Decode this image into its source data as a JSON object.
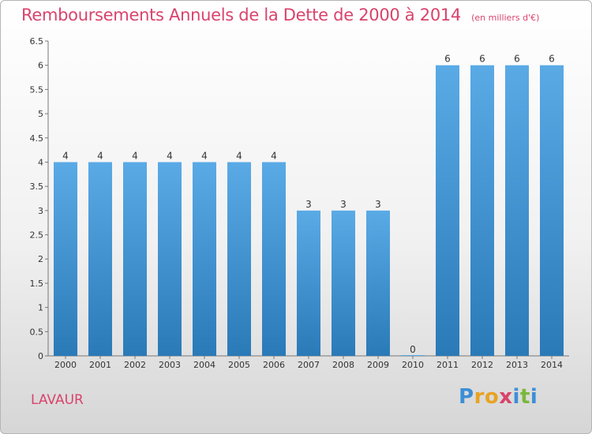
{
  "title": "Remboursements Annuels de la Dette de 2000 à 2014",
  "unit_note": "(en milliers d'€)",
  "place": "LAVAUR",
  "logo": {
    "text": "Proxiti",
    "letters": [
      {
        "ch": "P",
        "color": "#3d8ed6"
      },
      {
        "ch": "r",
        "color": "#e8a323"
      },
      {
        "ch": "o",
        "color": "#e8a323"
      },
      {
        "ch": "x",
        "color": "#d9436c"
      },
      {
        "ch": "i",
        "color": "#3d8ed6"
      },
      {
        "ch": "t",
        "color": "#7ab83d"
      },
      {
        "ch": "i",
        "color": "#3d8ed6"
      }
    ]
  },
  "colors": {
    "accent": "#d9436c",
    "bar_top": "#5aaae6",
    "bar_bottom": "#2a7ab8"
  },
  "chart_data": {
    "type": "bar",
    "title": "Remboursements Annuels de la Dette de 2000 à 2014",
    "subtitle": "(en milliers d'€)",
    "xlabel": "",
    "ylabel": "",
    "categories": [
      "2000",
      "2001",
      "2002",
      "2003",
      "2004",
      "2005",
      "2006",
      "2007",
      "2008",
      "2009",
      "2010",
      "2011",
      "2012",
      "2013",
      "2014"
    ],
    "values": [
      4,
      4,
      4,
      4,
      4,
      4,
      4,
      3,
      3,
      3,
      0,
      6,
      6,
      6,
      6
    ],
    "data_labels": [
      "4",
      "4",
      "4",
      "4",
      "4",
      "4",
      "4",
      "3",
      "3",
      "3",
      "0",
      "6",
      "6",
      "6",
      "6"
    ],
    "ylim": [
      0,
      6.5
    ],
    "yticks": [
      "0",
      "0.5",
      "1",
      "1.5",
      "2",
      "2.5",
      "3",
      "3.5",
      "4",
      "4.5",
      "5",
      "5.5",
      "6",
      "6.5"
    ],
    "grid": false,
    "legend": "none"
  }
}
